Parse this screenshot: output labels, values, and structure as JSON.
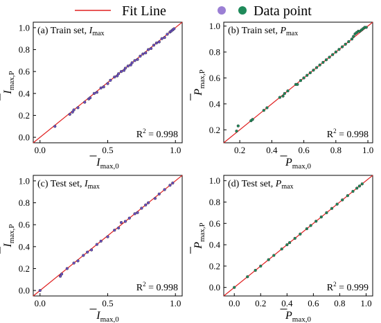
{
  "legend": {
    "fit_line_label": "Fit Line",
    "data_point_label": "Data point",
    "colors": {
      "fit_line": "#e02020",
      "purple_point": "#9b7fd4",
      "green_point": "#1f8a5a"
    }
  },
  "chart_data": [
    {
      "type": "scatter",
      "panel_label": "(a) Train set, ",
      "var_symbol": "I",
      "var_sub": "max",
      "xlabel": {
        "base": "I",
        "sub": "max,0"
      },
      "ylabel": {
        "base": "I",
        "sub": "max,P"
      },
      "xlim": [
        -0.05,
        1.05
      ],
      "ylim": [
        -0.05,
        1.05
      ],
      "xticks": [
        "0.0",
        "0.5",
        "1.0"
      ],
      "xtick_values": [
        0.0,
        0.5,
        1.0
      ],
      "yticks": [
        "0.0",
        "0.2",
        "0.4",
        "0.6",
        "0.8",
        "1.0"
      ],
      "ytick_values": [
        0.0,
        0.2,
        0.4,
        0.6,
        0.8,
        1.0
      ],
      "r2_text": "R",
      "r2_value": "= 0.998",
      "series": [
        {
          "color": "#6a4fc2",
          "points": [
            [
              0.11,
              0.1
            ],
            [
              0.22,
              0.21
            ],
            [
              0.24,
              0.23
            ],
            [
              0.25,
              0.25
            ],
            [
              0.28,
              0.27
            ],
            [
              0.36,
              0.35
            ],
            [
              0.37,
              0.36
            ],
            [
              0.4,
              0.4
            ],
            [
              0.42,
              0.41
            ],
            [
              0.45,
              0.45
            ],
            [
              0.47,
              0.46
            ],
            [
              0.5,
              0.49
            ],
            [
              0.52,
              0.52
            ],
            [
              0.55,
              0.55
            ],
            [
              0.57,
              0.56
            ],
            [
              0.58,
              0.58
            ],
            [
              0.6,
              0.6
            ],
            [
              0.62,
              0.61
            ],
            [
              0.63,
              0.63
            ],
            [
              0.65,
              0.65
            ],
            [
              0.67,
              0.66
            ],
            [
              0.68,
              0.68
            ],
            [
              0.7,
              0.7
            ],
            [
              0.72,
              0.71
            ],
            [
              0.74,
              0.74
            ],
            [
              0.76,
              0.76
            ],
            [
              0.78,
              0.77
            ],
            [
              0.8,
              0.8
            ],
            [
              0.82,
              0.81
            ],
            [
              0.84,
              0.84
            ],
            [
              0.86,
              0.86
            ],
            [
              0.88,
              0.87
            ],
            [
              0.9,
              0.9
            ],
            [
              0.92,
              0.91
            ],
            [
              0.94,
              0.94
            ],
            [
              0.96,
              0.96
            ],
            [
              0.97,
              0.97
            ],
            [
              0.98,
              0.98
            ],
            [
              0.99,
              0.99
            ],
            [
              0.33,
              0.32
            ]
          ]
        }
      ]
    },
    {
      "type": "scatter",
      "panel_label": "(b) Train set, ",
      "var_symbol": "P",
      "var_sub": "max",
      "xlabel": {
        "base": "P",
        "sub": "max,0"
      },
      "ylabel": {
        "base": "P",
        "sub": "max,P"
      },
      "xlim": [
        0.1,
        1.03
      ],
      "ylim": [
        0.1,
        1.03
      ],
      "xticks": [
        "0.2",
        "0.4",
        "0.6",
        "0.8",
        "1.0"
      ],
      "xtick_values": [
        0.2,
        0.4,
        0.6,
        0.8,
        1.0
      ],
      "yticks": [
        "0.2",
        "0.4",
        "0.6",
        "0.8",
        "1.0"
      ],
      "ytick_values": [
        0.2,
        0.4,
        0.6,
        0.8,
        1.0
      ],
      "r2_text": "R",
      "r2_value": "= 0.998",
      "series": [
        {
          "color": "#1f8a5a",
          "points": [
            [
              0.18,
              0.19
            ],
            [
              0.19,
              0.23
            ],
            [
              0.27,
              0.27
            ],
            [
              0.28,
              0.28
            ],
            [
              0.35,
              0.35
            ],
            [
              0.37,
              0.37
            ],
            [
              0.45,
              0.45
            ],
            [
              0.47,
              0.46
            ],
            [
              0.48,
              0.48
            ],
            [
              0.5,
              0.5
            ],
            [
              0.55,
              0.55
            ],
            [
              0.56,
              0.55
            ],
            [
              0.58,
              0.58
            ],
            [
              0.6,
              0.6
            ],
            [
              0.62,
              0.62
            ],
            [
              0.64,
              0.64
            ],
            [
              0.66,
              0.66
            ],
            [
              0.68,
              0.68
            ],
            [
              0.7,
              0.7
            ],
            [
              0.72,
              0.72
            ],
            [
              0.74,
              0.74
            ],
            [
              0.76,
              0.76
            ],
            [
              0.78,
              0.78
            ],
            [
              0.8,
              0.8
            ],
            [
              0.82,
              0.82
            ],
            [
              0.84,
              0.84
            ],
            [
              0.86,
              0.86
            ],
            [
              0.88,
              0.88
            ],
            [
              0.9,
              0.9
            ],
            [
              0.91,
              0.92
            ],
            [
              0.92,
              0.94
            ],
            [
              0.93,
              0.95
            ],
            [
              0.94,
              0.96
            ],
            [
              0.95,
              0.96
            ],
            [
              0.96,
              0.97
            ],
            [
              0.97,
              0.98
            ],
            [
              0.98,
              0.99
            ],
            [
              0.99,
              0.99
            ]
          ]
        }
      ]
    },
    {
      "type": "scatter",
      "panel_label": "(c) Test set, ",
      "var_symbol": "I",
      "var_sub": "max",
      "xlabel": {
        "base": "I",
        "sub": "max,0"
      },
      "ylabel": {
        "base": "I",
        "sub": "max,P"
      },
      "xlim": [
        -0.05,
        1.05
      ],
      "ylim": [
        -0.05,
        1.05
      ],
      "xticks": [
        "0.0",
        "0.5",
        "1.0"
      ],
      "xtick_values": [
        0.0,
        0.5,
        1.0
      ],
      "yticks": [
        "0.0",
        "0.2",
        "0.4",
        "0.6",
        "0.8",
        "1.0"
      ],
      "ytick_values": [
        0.0,
        0.2,
        0.4,
        0.6,
        0.8,
        1.0
      ],
      "r2_text": "R",
      "r2_value": "= 0.998",
      "series": [
        {
          "color": "#6a4fc2",
          "points": [
            [
              0.0,
              0.0
            ],
            [
              0.15,
              0.13
            ],
            [
              0.16,
              0.15
            ],
            [
              0.2,
              0.2
            ],
            [
              0.25,
              0.25
            ],
            [
              0.28,
              0.27
            ],
            [
              0.32,
              0.32
            ],
            [
              0.35,
              0.35
            ],
            [
              0.38,
              0.37
            ],
            [
              0.42,
              0.42
            ],
            [
              0.45,
              0.45
            ],
            [
              0.5,
              0.49
            ],
            [
              0.55,
              0.55
            ],
            [
              0.58,
              0.57
            ],
            [
              0.6,
              0.62
            ],
            [
              0.63,
              0.63
            ],
            [
              0.66,
              0.66
            ],
            [
              0.7,
              0.7
            ],
            [
              0.72,
              0.71
            ],
            [
              0.75,
              0.75
            ],
            [
              0.78,
              0.78
            ],
            [
              0.8,
              0.8
            ],
            [
              0.85,
              0.84
            ],
            [
              0.88,
              0.88
            ],
            [
              0.92,
              0.92
            ],
            [
              0.96,
              0.96
            ],
            [
              0.98,
              0.98
            ]
          ]
        }
      ]
    },
    {
      "type": "scatter",
      "panel_label": "(d) Test set, ",
      "var_symbol": "P",
      "var_sub": "max",
      "xlabel": {
        "base": "P",
        "sub": "max,0"
      },
      "ylabel": {
        "base": "P",
        "sub": "max,P"
      },
      "xlim": [
        -0.08,
        1.05
      ],
      "ylim": [
        -0.08,
        1.05
      ],
      "xticks": [
        "0.0",
        "0.2",
        "0.4",
        "0.6",
        "0.8",
        "1.0"
      ],
      "xtick_values": [
        0.0,
        0.2,
        0.4,
        0.6,
        0.8,
        1.0
      ],
      "yticks": [
        "0.0",
        "0.2",
        "0.4",
        "0.6",
        "0.8",
        "1.0"
      ],
      "ytick_values": [
        0.0,
        0.2,
        0.4,
        0.6,
        0.8,
        1.0
      ],
      "r2_text": "R",
      "r2_value": "= 0.999",
      "series": [
        {
          "color": "#1f8a5a",
          "points": [
            [
              0.0,
              0.0
            ],
            [
              0.1,
              0.1
            ],
            [
              0.16,
              0.16
            ],
            [
              0.2,
              0.2
            ],
            [
              0.26,
              0.26
            ],
            [
              0.3,
              0.3
            ],
            [
              0.36,
              0.36
            ],
            [
              0.4,
              0.4
            ],
            [
              0.42,
              0.42
            ],
            [
              0.46,
              0.46
            ],
            [
              0.5,
              0.5
            ],
            [
              0.55,
              0.55
            ],
            [
              0.58,
              0.58
            ],
            [
              0.62,
              0.62
            ],
            [
              0.66,
              0.66
            ],
            [
              0.7,
              0.7
            ],
            [
              0.74,
              0.74
            ],
            [
              0.78,
              0.78
            ],
            [
              0.82,
              0.82
            ],
            [
              0.86,
              0.86
            ],
            [
              0.9,
              0.9
            ],
            [
              0.93,
              0.93
            ],
            [
              0.95,
              0.95
            ],
            [
              0.97,
              0.97
            ]
          ]
        }
      ]
    }
  ]
}
